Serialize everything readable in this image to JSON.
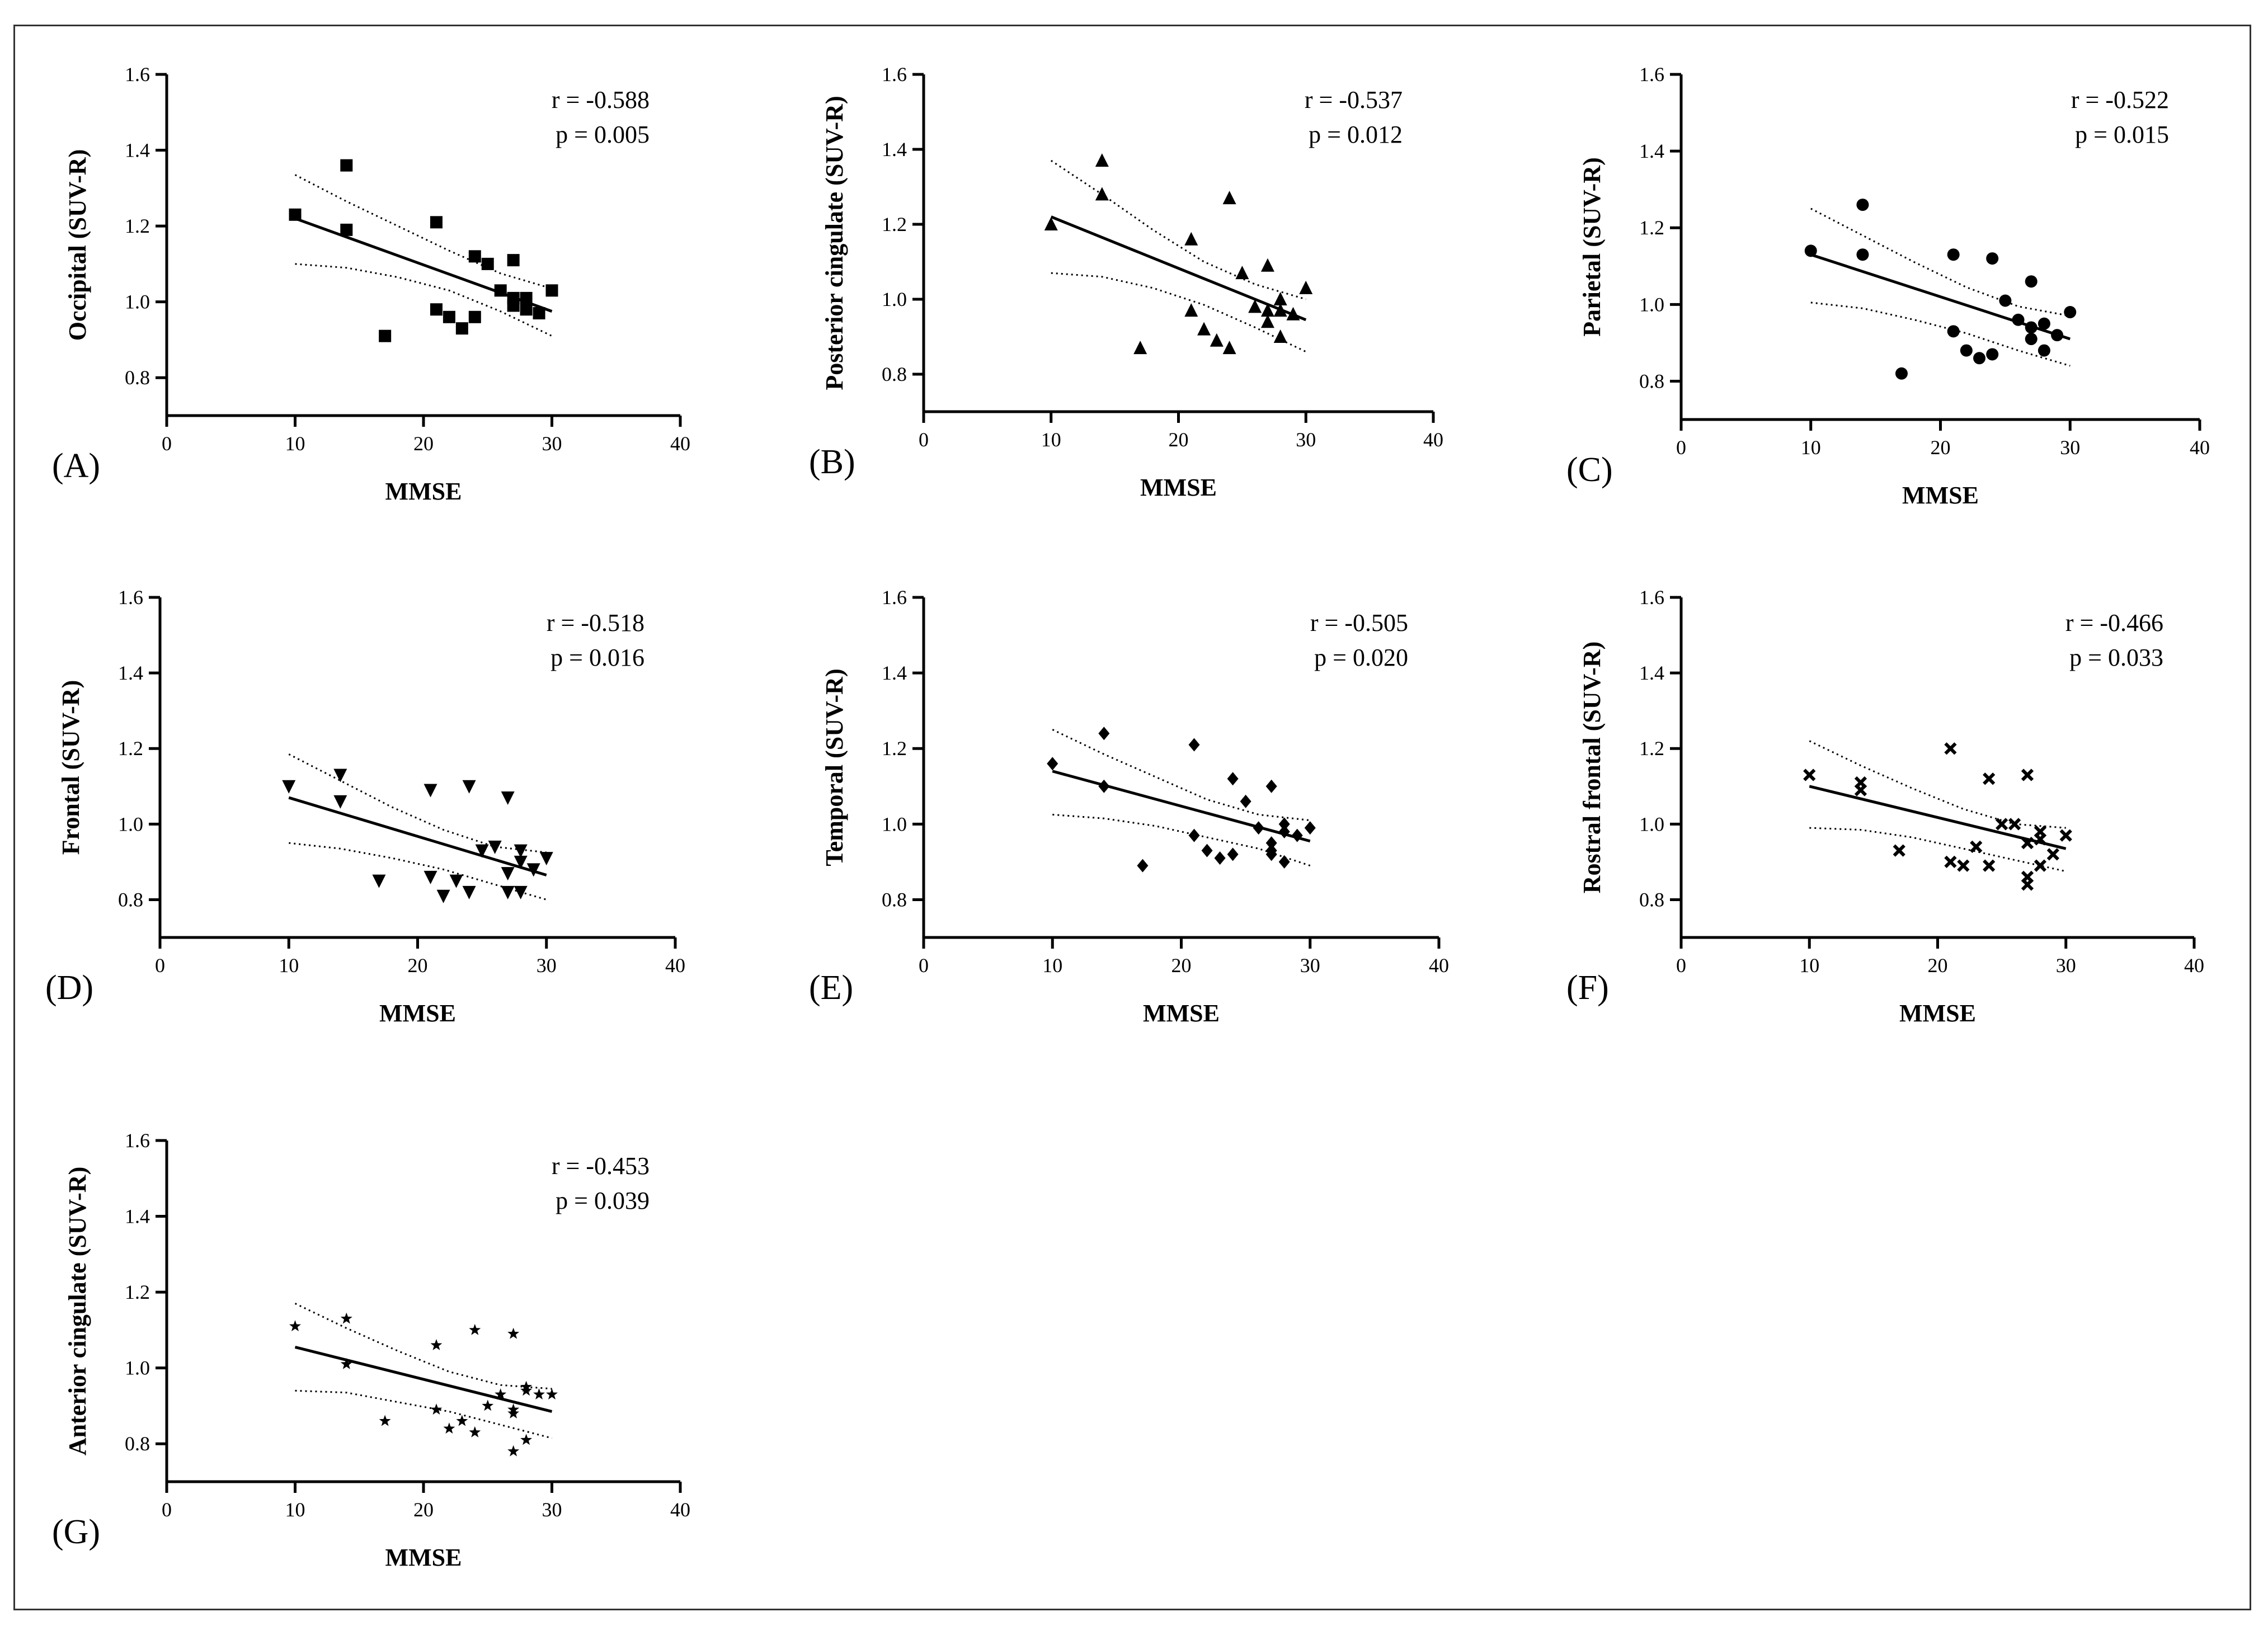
{
  "figure": {
    "xlabel": "MMSE"
  },
  "chart_data": [
    {
      "type": "scatter",
      "panel": "(A)",
      "ylabel": "Occipital (SUV-R)",
      "xlabel": "MMSE",
      "xlim": [
        0,
        40
      ],
      "ylim": [
        0.7,
        1.6
      ],
      "xticks": [
        "0",
        "10",
        "20",
        "30",
        "40"
      ],
      "yticks": [
        "0.8",
        "1.0",
        "1.2",
        "1.4",
        "1.6"
      ],
      "r_text": "r = -0.588",
      "p_text": "p = 0.005",
      "marker": "square",
      "points": [
        [
          10,
          1.23
        ],
        [
          14,
          1.36
        ],
        [
          14,
          1.19
        ],
        [
          17,
          0.91
        ],
        [
          21,
          1.21
        ],
        [
          21,
          0.98
        ],
        [
          22,
          0.96
        ],
        [
          23,
          0.93
        ],
        [
          24,
          1.12
        ],
        [
          24,
          0.96
        ],
        [
          25,
          1.1
        ],
        [
          26,
          1.03
        ],
        [
          27,
          1.11
        ],
        [
          27,
          1.01
        ],
        [
          27,
          0.99
        ],
        [
          28,
          1.01
        ],
        [
          28,
          0.98
        ],
        [
          29,
          0.97
        ],
        [
          30,
          1.03
        ]
      ],
      "fit": [
        [
          10,
          1.22
        ],
        [
          30,
          0.975
        ]
      ],
      "ci_upper": [
        [
          10,
          1.335
        ],
        [
          14,
          1.265
        ],
        [
          18,
          1.2
        ],
        [
          22,
          1.135
        ],
        [
          26,
          1.075
        ],
        [
          30,
          1.035
        ]
      ],
      "ci_lower": [
        [
          10,
          1.1
        ],
        [
          14,
          1.09
        ],
        [
          18,
          1.065
        ],
        [
          22,
          1.03
        ],
        [
          26,
          0.975
        ],
        [
          30,
          0.91
        ]
      ]
    },
    {
      "type": "scatter",
      "panel": "(B)",
      "ylabel": "Posterior cingulate (SUV-R)",
      "xlabel": "MMSE",
      "xlim": [
        0,
        40
      ],
      "ylim": [
        0.7,
        1.6
      ],
      "xticks": [
        "0",
        "10",
        "20",
        "30",
        "40"
      ],
      "yticks": [
        "0.8",
        "1.0",
        "1.2",
        "1.4",
        "1.6"
      ],
      "r_text": "r = -0.537",
      "p_text": "p = 0.012",
      "marker": "triangle-up",
      "points": [
        [
          10,
          1.2
        ],
        [
          14,
          1.37
        ],
        [
          14,
          1.28
        ],
        [
          17,
          0.87
        ],
        [
          21,
          1.16
        ],
        [
          21,
          0.97
        ],
        [
          22,
          0.92
        ],
        [
          23,
          0.89
        ],
        [
          24,
          1.27
        ],
        [
          24,
          0.87
        ],
        [
          25,
          1.07
        ],
        [
          26,
          0.98
        ],
        [
          27,
          1.09
        ],
        [
          27,
          0.97
        ],
        [
          27,
          0.94
        ],
        [
          28,
          1.0
        ],
        [
          28,
          0.97
        ],
        [
          28,
          0.9
        ],
        [
          29,
          0.96
        ],
        [
          30,
          1.03
        ]
      ],
      "fit": [
        [
          10,
          1.22
        ],
        [
          30,
          0.945
        ]
      ],
      "ci_upper": [
        [
          10,
          1.37
        ],
        [
          14,
          1.28
        ],
        [
          18,
          1.185
        ],
        [
          22,
          1.1
        ],
        [
          26,
          1.04
        ],
        [
          30,
          1.0
        ]
      ],
      "ci_lower": [
        [
          10,
          1.07
        ],
        [
          14,
          1.06
        ],
        [
          18,
          1.03
        ],
        [
          22,
          0.985
        ],
        [
          26,
          0.925
        ],
        [
          30,
          0.86
        ]
      ]
    },
    {
      "type": "scatter",
      "panel": "(C)",
      "ylabel": "Parietal (SUV-R)",
      "xlabel": "MMSE",
      "xlim": [
        0,
        40
      ],
      "ylim": [
        0.7,
        1.6
      ],
      "xticks": [
        "0",
        "10",
        "20",
        "30",
        "40"
      ],
      "yticks": [
        "0.8",
        "1.0",
        "1.2",
        "1.4",
        "1.6"
      ],
      "r_text": "r = -0.522",
      "p_text": "p = 0.015",
      "marker": "circle",
      "points": [
        [
          10,
          1.14
        ],
        [
          14,
          1.26
        ],
        [
          14,
          1.13
        ],
        [
          17,
          0.82
        ],
        [
          21,
          1.13
        ],
        [
          21,
          0.93
        ],
        [
          22,
          0.88
        ],
        [
          23,
          0.86
        ],
        [
          24,
          1.12
        ],
        [
          24,
          0.87
        ],
        [
          25,
          1.01
        ],
        [
          26,
          0.96
        ],
        [
          27,
          1.06
        ],
        [
          27,
          0.94
        ],
        [
          27,
          0.91
        ],
        [
          28,
          0.95
        ],
        [
          28,
          0.88
        ],
        [
          29,
          0.92
        ],
        [
          30,
          0.98
        ]
      ],
      "fit": [
        [
          10,
          1.13
        ],
        [
          30,
          0.91
        ]
      ],
      "ci_upper": [
        [
          10,
          1.25
        ],
        [
          14,
          1.18
        ],
        [
          18,
          1.11
        ],
        [
          22,
          1.045
        ],
        [
          26,
          0.995
        ],
        [
          30,
          0.97
        ]
      ],
      "ci_lower": [
        [
          10,
          1.005
        ],
        [
          14,
          0.99
        ],
        [
          18,
          0.96
        ],
        [
          22,
          0.925
        ],
        [
          26,
          0.88
        ],
        [
          30,
          0.84
        ]
      ]
    },
    {
      "type": "scatter",
      "panel": "(D)",
      "ylabel": "Frontal (SUV-R)",
      "xlabel": "MMSE",
      "xlim": [
        0,
        40
      ],
      "ylim": [
        0.7,
        1.6
      ],
      "xticks": [
        "0",
        "10",
        "20",
        "30",
        "40"
      ],
      "yticks": [
        "0.8",
        "1.0",
        "1.2",
        "1.4",
        "1.6"
      ],
      "r_text": "r = -0.518",
      "p_text": "p = 0.016",
      "marker": "triangle-down",
      "points": [
        [
          10,
          1.1
        ],
        [
          14,
          1.13
        ],
        [
          14,
          1.06
        ],
        [
          17,
          0.85
        ],
        [
          21,
          1.09
        ],
        [
          21,
          0.86
        ],
        [
          22,
          0.81
        ],
        [
          23,
          0.85
        ],
        [
          24,
          1.1
        ],
        [
          24,
          0.82
        ],
        [
          25,
          0.93
        ],
        [
          26,
          0.94
        ],
        [
          27,
          1.07
        ],
        [
          27,
          0.87
        ],
        [
          27,
          0.82
        ],
        [
          28,
          0.93
        ],
        [
          28,
          0.9
        ],
        [
          28,
          0.82
        ],
        [
          29,
          0.88
        ],
        [
          30,
          0.91
        ]
      ],
      "fit": [
        [
          10,
          1.07
        ],
        [
          30,
          0.865
        ]
      ],
      "ci_upper": [
        [
          10,
          1.185
        ],
        [
          14,
          1.115
        ],
        [
          18,
          1.045
        ],
        [
          22,
          0.985
        ],
        [
          26,
          0.94
        ],
        [
          30,
          0.925
        ]
      ],
      "ci_lower": [
        [
          10,
          0.95
        ],
        [
          14,
          0.935
        ],
        [
          18,
          0.91
        ],
        [
          22,
          0.88
        ],
        [
          26,
          0.84
        ],
        [
          30,
          0.8
        ]
      ]
    },
    {
      "type": "scatter",
      "panel": "(E)",
      "ylabel": "Temporal (SUV-R)",
      "xlabel": "MMSE",
      "xlim": [
        0,
        40
      ],
      "ylim": [
        0.7,
        1.6
      ],
      "xticks": [
        "0",
        "10",
        "20",
        "30",
        "40"
      ],
      "yticks": [
        "0.8",
        "1.0",
        "1.2",
        "1.4",
        "1.6"
      ],
      "r_text": "r = -0.505",
      "p_text": "p = 0.020",
      "marker": "diamond",
      "points": [
        [
          10,
          1.16
        ],
        [
          14,
          1.24
        ],
        [
          14,
          1.1
        ],
        [
          17,
          0.89
        ],
        [
          21,
          1.21
        ],
        [
          21,
          0.97
        ],
        [
          22,
          0.93
        ],
        [
          23,
          0.91
        ],
        [
          24,
          1.12
        ],
        [
          24,
          0.92
        ],
        [
          25,
          1.06
        ],
        [
          26,
          0.99
        ],
        [
          27,
          1.1
        ],
        [
          27,
          0.95
        ],
        [
          27,
          0.93
        ],
        [
          27,
          0.92
        ],
        [
          28,
          1.0
        ],
        [
          28,
          0.98
        ],
        [
          28,
          0.9
        ],
        [
          29,
          0.97
        ],
        [
          30,
          0.99
        ]
      ],
      "fit": [
        [
          10,
          1.14
        ],
        [
          30,
          0.955
        ]
      ],
      "ci_upper": [
        [
          10,
          1.25
        ],
        [
          14,
          1.185
        ],
        [
          18,
          1.125
        ],
        [
          22,
          1.065
        ],
        [
          26,
          1.025
        ],
        [
          30,
          1.01
        ]
      ],
      "ci_lower": [
        [
          10,
          1.025
        ],
        [
          14,
          1.015
        ],
        [
          18,
          0.995
        ],
        [
          22,
          0.965
        ],
        [
          26,
          0.935
        ],
        [
          30,
          0.89
        ]
      ]
    },
    {
      "type": "scatter",
      "panel": "(F)",
      "ylabel": "Rostral frontal (SUV-R)",
      "xlabel": "MMSE",
      "xlim": [
        0,
        40
      ],
      "ylim": [
        0.7,
        1.6
      ],
      "xticks": [
        "0",
        "10",
        "20",
        "30",
        "40"
      ],
      "yticks": [
        "0.8",
        "1.0",
        "1.2",
        "1.4",
        "1.6"
      ],
      "r_text": "r = -0.466",
      "p_text": "p = 0.033",
      "marker": "cross",
      "points": [
        [
          10,
          1.13
        ],
        [
          14,
          1.11
        ],
        [
          14,
          1.09
        ],
        [
          17,
          0.93
        ],
        [
          21,
          1.2
        ],
        [
          21,
          0.9
        ],
        [
          22,
          0.89
        ],
        [
          23,
          0.94
        ],
        [
          24,
          1.12
        ],
        [
          24,
          0.89
        ],
        [
          25,
          1.0
        ],
        [
          26,
          1.0
        ],
        [
          27,
          1.13
        ],
        [
          27,
          0.95
        ],
        [
          27,
          0.86
        ],
        [
          27,
          0.84
        ],
        [
          28,
          0.98
        ],
        [
          28,
          0.96
        ],
        [
          28,
          0.89
        ],
        [
          29,
          0.92
        ],
        [
          30,
          0.97
        ]
      ],
      "fit": [
        [
          10,
          1.1
        ],
        [
          30,
          0.935
        ]
      ],
      "ci_upper": [
        [
          10,
          1.22
        ],
        [
          14,
          1.155
        ],
        [
          18,
          1.095
        ],
        [
          22,
          1.04
        ],
        [
          26,
          1.0
        ],
        [
          30,
          0.99
        ]
      ],
      "ci_lower": [
        [
          10,
          0.99
        ],
        [
          14,
          0.985
        ],
        [
          18,
          0.965
        ],
        [
          22,
          0.935
        ],
        [
          26,
          0.905
        ],
        [
          30,
          0.875
        ]
      ]
    },
    {
      "type": "scatter",
      "panel": "(G)",
      "ylabel": "Anterior cingulate (SUV-R)",
      "xlabel": "MMSE",
      "xlim": [
        0,
        40
      ],
      "ylim": [
        0.7,
        1.6
      ],
      "xticks": [
        "0",
        "10",
        "20",
        "30",
        "40"
      ],
      "yticks": [
        "0.8",
        "1.0",
        "1.2",
        "1.4",
        "1.6"
      ],
      "r_text": "r = -0.453",
      "p_text": "p = 0.039",
      "marker": "star",
      "points": [
        [
          10,
          1.11
        ],
        [
          14,
          1.13
        ],
        [
          14,
          1.01
        ],
        [
          17,
          0.86
        ],
        [
          21,
          1.06
        ],
        [
          21,
          0.89
        ],
        [
          22,
          0.84
        ],
        [
          23,
          0.86
        ],
        [
          24,
          1.1
        ],
        [
          24,
          0.83
        ],
        [
          25,
          0.9
        ],
        [
          26,
          0.93
        ],
        [
          27,
          1.09
        ],
        [
          27,
          0.89
        ],
        [
          27,
          0.88
        ],
        [
          27,
          0.78
        ],
        [
          28,
          0.95
        ],
        [
          28,
          0.94
        ],
        [
          28,
          0.81
        ],
        [
          29,
          0.93
        ],
        [
          30,
          0.93
        ]
      ],
      "fit": [
        [
          10,
          1.055
        ],
        [
          30,
          0.885
        ]
      ],
      "ci_upper": [
        [
          10,
          1.17
        ],
        [
          14,
          1.105
        ],
        [
          18,
          1.045
        ],
        [
          22,
          0.99
        ],
        [
          26,
          0.955
        ],
        [
          30,
          0.945
        ]
      ],
      "ci_lower": [
        [
          10,
          0.94
        ],
        [
          14,
          0.935
        ],
        [
          18,
          0.91
        ],
        [
          22,
          0.885
        ],
        [
          26,
          0.85
        ],
        [
          30,
          0.815
        ]
      ]
    }
  ]
}
